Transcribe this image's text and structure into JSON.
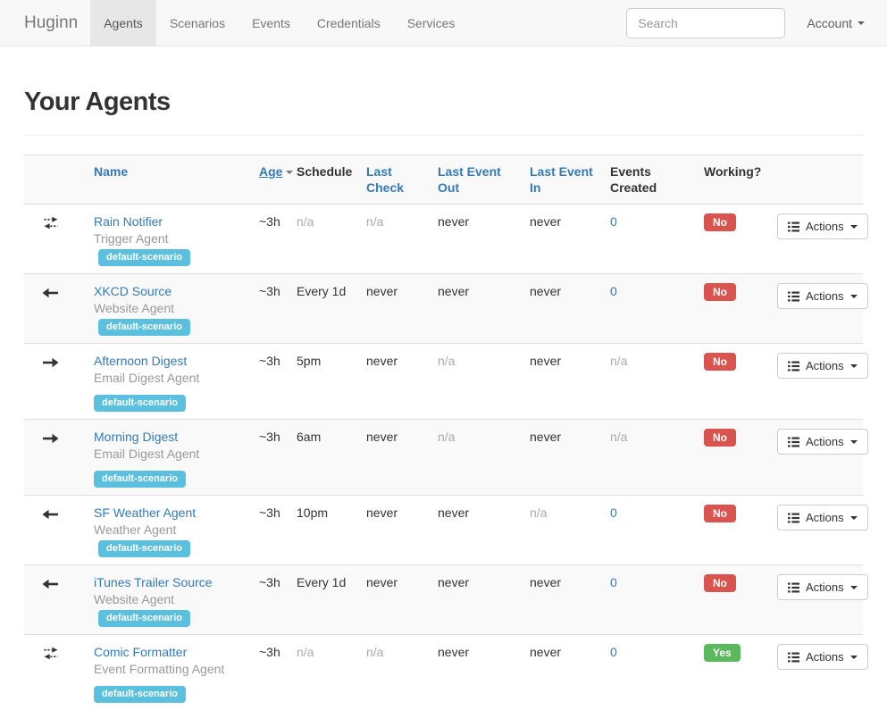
{
  "navbar": {
    "brand": "Huginn",
    "items": [
      "Agents",
      "Scenarios",
      "Events",
      "Credentials",
      "Services"
    ],
    "active_item": "Agents",
    "search_placeholder": "Search",
    "account_label": "Account"
  },
  "page": {
    "title": "Your Agents"
  },
  "table": {
    "headers": [
      {
        "label": "Name",
        "link": true
      },
      {
        "label": "Age",
        "link": true,
        "sorted": "desc"
      },
      {
        "label": "Schedule",
        "link": false
      },
      {
        "label": "Last Check",
        "link": true
      },
      {
        "label": "Last Event Out",
        "link": true
      },
      {
        "label": "Last Event In",
        "link": true
      },
      {
        "label": "Events Created",
        "link": false
      },
      {
        "label": "Working?",
        "link": false
      }
    ],
    "actions_label": "Actions",
    "rows": [
      {
        "icon": "exchange-icon",
        "name": "Rain Notifier",
        "type": "Trigger Agent",
        "badges": [
          "default-scenario"
        ],
        "badge_position": "inline",
        "age": "~3h",
        "schedule": "n/a",
        "last_check": "n/a",
        "last_event_out": "never",
        "last_event_in": "never",
        "events_created": "0",
        "working": "No"
      },
      {
        "icon": "arrow-left-icon",
        "name": "XKCD Source",
        "type": "Website Agent",
        "badges": [
          "default-scenario"
        ],
        "badge_position": "inline",
        "age": "~3h",
        "schedule": "Every 1d",
        "last_check": "never",
        "last_event_out": "never",
        "last_event_in": "never",
        "events_created": "0",
        "working": "No"
      },
      {
        "icon": "arrow-right-icon",
        "name": "Afternoon Digest",
        "type": "Email Digest Agent",
        "badges": [
          "default-scenario"
        ],
        "badge_position": "newline",
        "age": "~3h",
        "schedule": "5pm",
        "last_check": "never",
        "last_event_out": "n/a",
        "last_event_in": "never",
        "events_created": "n/a",
        "working": "No"
      },
      {
        "icon": "arrow-right-icon",
        "name": "Morning Digest",
        "type": "Email Digest Agent",
        "badges": [
          "default-scenario"
        ],
        "badge_position": "newline",
        "age": "~3h",
        "schedule": "6am",
        "last_check": "never",
        "last_event_out": "n/a",
        "last_event_in": "never",
        "events_created": "n/a",
        "working": "No"
      },
      {
        "icon": "arrow-left-icon",
        "name": "SF Weather Agent",
        "type": "Weather Agent",
        "badges": [
          "default-scenario"
        ],
        "badge_position": "inline",
        "age": "~3h",
        "schedule": "10pm",
        "last_check": "never",
        "last_event_out": "never",
        "last_event_in": "n/a",
        "events_created": "0",
        "working": "No"
      },
      {
        "icon": "arrow-left-icon",
        "name": "iTunes Trailer Source",
        "type": "Website Agent",
        "badges": [
          "default-scenario"
        ],
        "badge_position": "inline",
        "age": "~3h",
        "schedule": "Every 1d",
        "last_check": "never",
        "last_event_out": "never",
        "last_event_in": "never",
        "events_created": "0",
        "working": "No"
      },
      {
        "icon": "exchange-icon",
        "name": "Comic Formatter",
        "type": "Event Formatting Agent",
        "badges": [
          "default-scenario"
        ],
        "badge_position": "newline",
        "age": "~3h",
        "schedule": "n/a",
        "last_check": "n/a",
        "last_event_out": "never",
        "last_event_in": "never",
        "events_created": "0",
        "working": "Yes"
      }
    ]
  },
  "colors": {
    "link_blue": "#337ab7",
    "badge_info": "#5bc0de",
    "working_no": "#d9534f",
    "working_yes": "#5cb85c",
    "stripe": "#f9f9f9"
  }
}
